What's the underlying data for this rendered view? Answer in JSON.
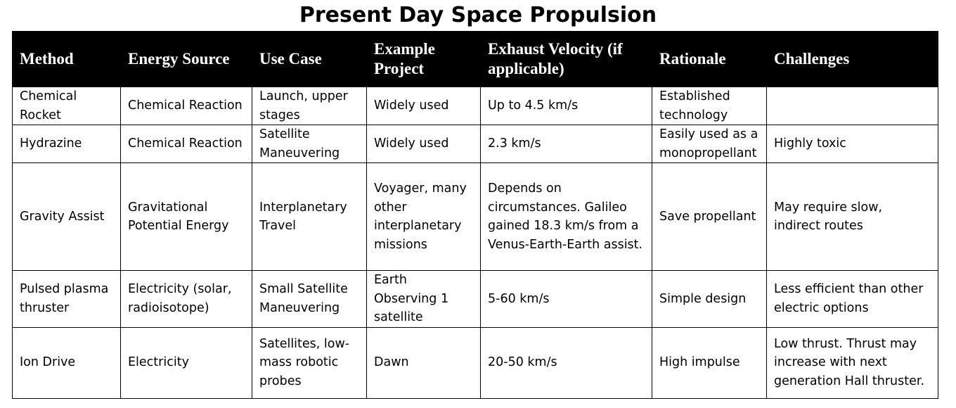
{
  "title": "Present Day Space Propulsion",
  "headers": [
    "Method",
    "Energy Source",
    "Use Case",
    "Example Project",
    "Exhaust Velocity (if applicable)",
    "Rationale",
    "Challenges"
  ],
  "rows": [
    [
      "Chemical Rocket",
      "Chemical Reaction",
      "Launch, upper stages",
      "Widely used",
      "Up to 4.5 km/s",
      "Established technology",
      ""
    ],
    [
      "Hydrazine",
      "Chemical Reaction",
      "Satellite Maneuvering",
      "Widely used",
      "2.3 km/s",
      "Easily used as a monopropellant",
      "Highly toxic"
    ],
    [
      "Gravity Assist",
      "Gravitational Potential Energy",
      "Interplanetary Travel",
      "Voyager, many other interplanetary missions",
      "Depends on circumstances. Galileo gained 18.3 km/s from a Venus-Earth-Earth assist.",
      "Save propellant",
      "May require slow, indirect routes"
    ],
    [
      "Pulsed plasma thruster",
      "Electricity (solar, radioisotope)",
      "Small Satellite Maneuvering",
      "Earth Observing 1 satellite",
      "5-60 km/s",
      "Simple design",
      "Less efficient than other electric options"
    ],
    [
      "Ion Drive",
      "Electricity",
      "Satellites, low-mass robotic probes",
      "Dawn",
      "20-50 km/s",
      "High impulse",
      "Low thrust. Thrust may increase with next generation Hall thruster."
    ]
  ]
}
